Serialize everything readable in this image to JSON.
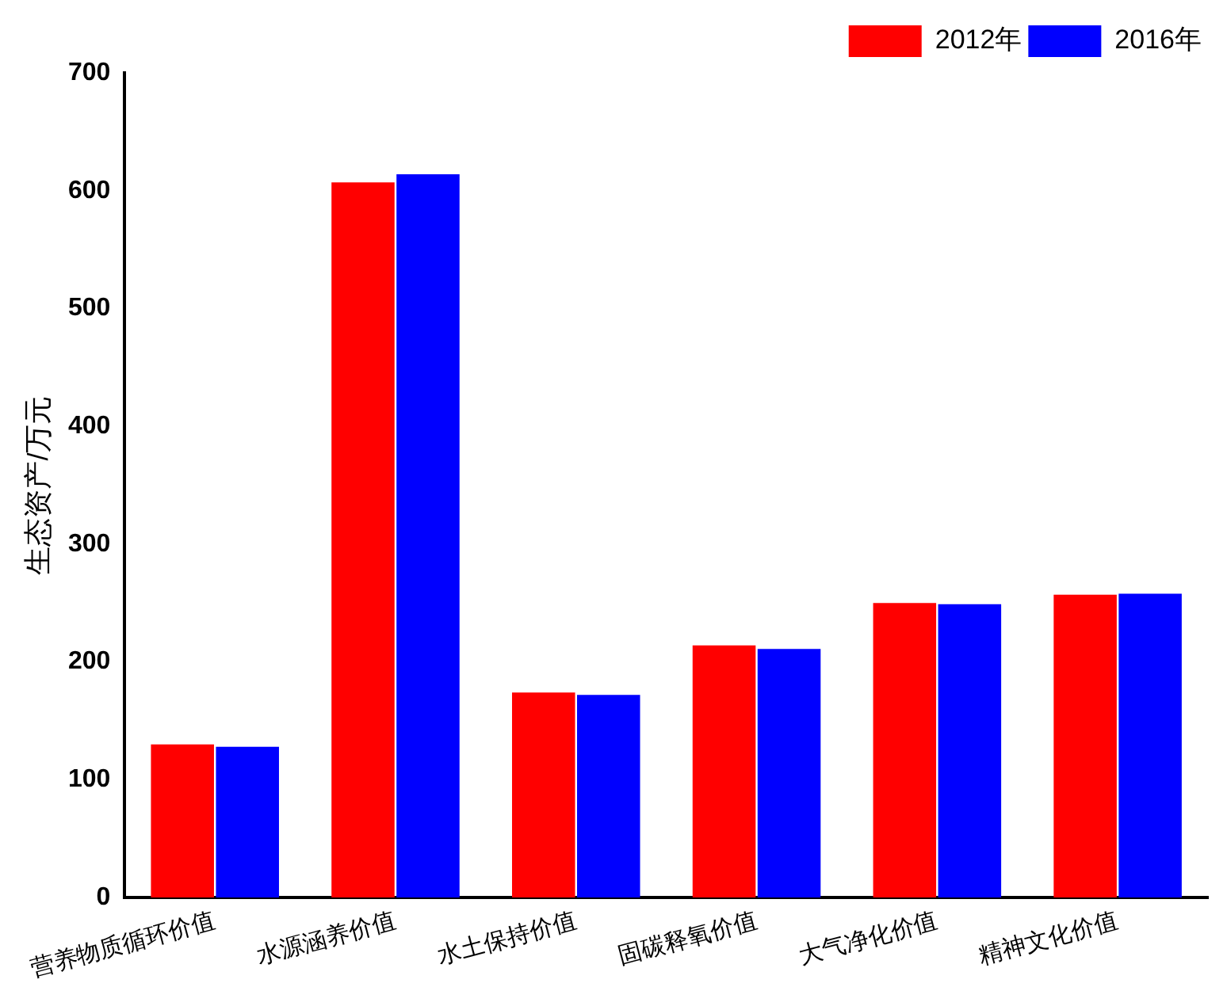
{
  "chart_data": {
    "type": "bar",
    "ylabel": "生态资产/万元",
    "categories": [
      "营养物质循环价值",
      "水源涵养价值",
      "水土保持价值",
      "固碳释氧价值",
      "大气净化价值",
      "精神文化价值"
    ],
    "series": [
      {
        "name": "2012年",
        "color": "#ff0000",
        "values": [
          130,
          607,
          174,
          214,
          250,
          257
        ]
      },
      {
        "name": "2016年",
        "color": "#0000ff",
        "values": [
          128,
          614,
          172,
          211,
          249,
          258
        ]
      }
    ],
    "ylim": [
      0,
      700
    ],
    "yticks": [
      0,
      100,
      200,
      300,
      400,
      500,
      600,
      700
    ],
    "grid": false,
    "legend": "top right"
  }
}
